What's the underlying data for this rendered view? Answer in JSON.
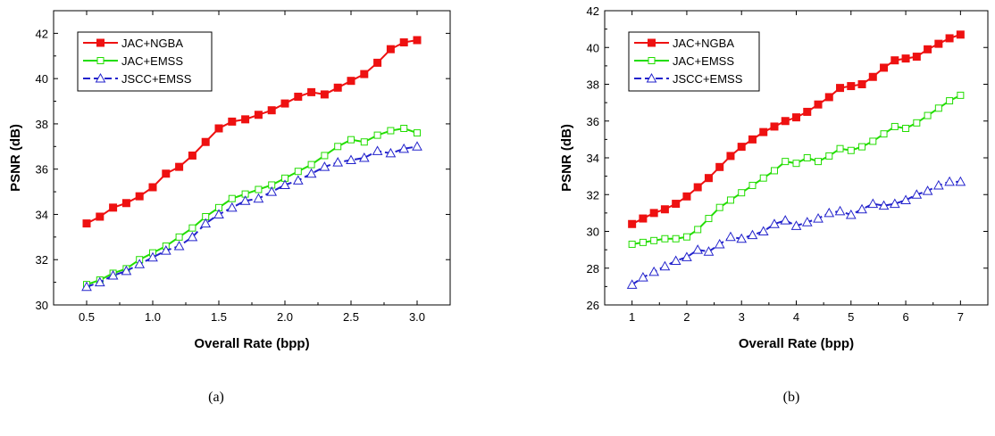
{
  "chart_data": [
    {
      "type": "line",
      "caption": "(a)",
      "xlabel": "Overall Rate (bpp)",
      "ylabel": "PSNR (dB)",
      "xlim": [
        0.25,
        3.25
      ],
      "ylim": [
        30,
        43
      ],
      "xticks": [
        0.5,
        1.0,
        1.5,
        2.0,
        2.5,
        3.0
      ],
      "xtick_labels": [
        "0.5",
        "1.0",
        "1.5",
        "2.0",
        "2.5",
        "3.0"
      ],
      "yticks": [
        30,
        32,
        34,
        36,
        38,
        40,
        42
      ],
      "ytick_labels": [
        "30",
        "32",
        "34",
        "36",
        "38",
        "40",
        "42"
      ],
      "grid": false,
      "legend_position": "top-left",
      "x": [
        0.5,
        0.6,
        0.7,
        0.8,
        0.9,
        1.0,
        1.1,
        1.2,
        1.3,
        1.4,
        1.5,
        1.6,
        1.7,
        1.8,
        1.9,
        2.0,
        2.1,
        2.2,
        2.3,
        2.4,
        2.5,
        2.6,
        2.7,
        2.8,
        2.9,
        3.0
      ],
      "series": [
        {
          "name": "JAC+NGBA",
          "color": "#ee1111",
          "marker": "filled-square",
          "dashed": false,
          "values": [
            33.6,
            33.9,
            34.3,
            34.5,
            34.8,
            35.2,
            35.8,
            36.1,
            36.6,
            37.2,
            37.8,
            38.1,
            38.2,
            38.4,
            38.6,
            38.9,
            39.2,
            39.4,
            39.3,
            39.6,
            39.9,
            40.2,
            40.7,
            41.3,
            41.6,
            41.7
          ]
        },
        {
          "name": "JAC+EMSS",
          "color": "#22dd00",
          "marker": "open-square",
          "dashed": false,
          "values": [
            30.9,
            31.1,
            31.4,
            31.6,
            32.0,
            32.3,
            32.6,
            33.0,
            33.4,
            33.9,
            34.3,
            34.7,
            34.9,
            35.1,
            35.3,
            35.6,
            35.9,
            36.2,
            36.6,
            37.0,
            37.3,
            37.2,
            37.5,
            37.7,
            37.8,
            37.6
          ]
        },
        {
          "name": "JSCC+EMSS",
          "color": "#2222cc",
          "marker": "open-triangle",
          "dashed": true,
          "values": [
            30.8,
            31.0,
            31.3,
            31.5,
            31.8,
            32.1,
            32.4,
            32.6,
            33.0,
            33.6,
            34.0,
            34.3,
            34.6,
            34.7,
            35.0,
            35.3,
            35.5,
            35.8,
            36.1,
            36.3,
            36.4,
            36.5,
            36.8,
            36.7,
            36.9,
            37.0
          ]
        }
      ]
    },
    {
      "type": "line",
      "caption": "(b)",
      "xlabel": "Overall Rate (bpp)",
      "ylabel": "PSNR (dB)",
      "xlim": [
        0.5,
        7.5
      ],
      "ylim": [
        26,
        42
      ],
      "xticks": [
        1,
        2,
        3,
        4,
        5,
        6,
        7
      ],
      "xtick_labels": [
        "1",
        "2",
        "3",
        "4",
        "5",
        "6",
        "7"
      ],
      "yticks": [
        26,
        28,
        30,
        32,
        34,
        36,
        38,
        40,
        42
      ],
      "ytick_labels": [
        "26",
        "28",
        "30",
        "32",
        "34",
        "36",
        "38",
        "40",
        "42"
      ],
      "grid": false,
      "legend_position": "top-left",
      "x": [
        1.0,
        1.2,
        1.4,
        1.6,
        1.8,
        2.0,
        2.2,
        2.4,
        2.6,
        2.8,
        3.0,
        3.2,
        3.4,
        3.6,
        3.8,
        4.0,
        4.2,
        4.4,
        4.6,
        4.8,
        5.0,
        5.2,
        5.4,
        5.6,
        5.8,
        6.0,
        6.2,
        6.4,
        6.6,
        6.8,
        7.0
      ],
      "series": [
        {
          "name": "JAC+NGBA",
          "color": "#ee1111",
          "marker": "filled-square",
          "dashed": false,
          "values": [
            30.4,
            30.7,
            31.0,
            31.2,
            31.5,
            31.9,
            32.4,
            32.9,
            33.5,
            34.1,
            34.6,
            35.0,
            35.4,
            35.7,
            36.0,
            36.2,
            36.5,
            36.9,
            37.3,
            37.8,
            37.9,
            38.0,
            38.4,
            38.9,
            39.3,
            39.4,
            39.5,
            39.9,
            40.2,
            40.5,
            40.7
          ]
        },
        {
          "name": "JAC+EMSS",
          "color": "#22dd00",
          "marker": "open-square",
          "dashed": false,
          "values": [
            29.3,
            29.4,
            29.5,
            29.6,
            29.6,
            29.7,
            30.1,
            30.7,
            31.3,
            31.7,
            32.1,
            32.5,
            32.9,
            33.3,
            33.8,
            33.7,
            34.0,
            33.8,
            34.1,
            34.5,
            34.4,
            34.6,
            34.9,
            35.3,
            35.7,
            35.6,
            35.9,
            36.3,
            36.7,
            37.1,
            37.4
          ]
        },
        {
          "name": "JSCC+EMSS",
          "color": "#2222cc",
          "marker": "open-triangle",
          "dashed": true,
          "values": [
            27.1,
            27.5,
            27.8,
            28.1,
            28.4,
            28.6,
            29.0,
            28.9,
            29.3,
            29.7,
            29.6,
            29.8,
            30.0,
            30.4,
            30.6,
            30.3,
            30.5,
            30.7,
            31.0,
            31.1,
            30.9,
            31.2,
            31.5,
            31.4,
            31.5,
            31.7,
            32.0,
            32.2,
            32.5,
            32.7,
            32.7
          ]
        }
      ]
    }
  ]
}
